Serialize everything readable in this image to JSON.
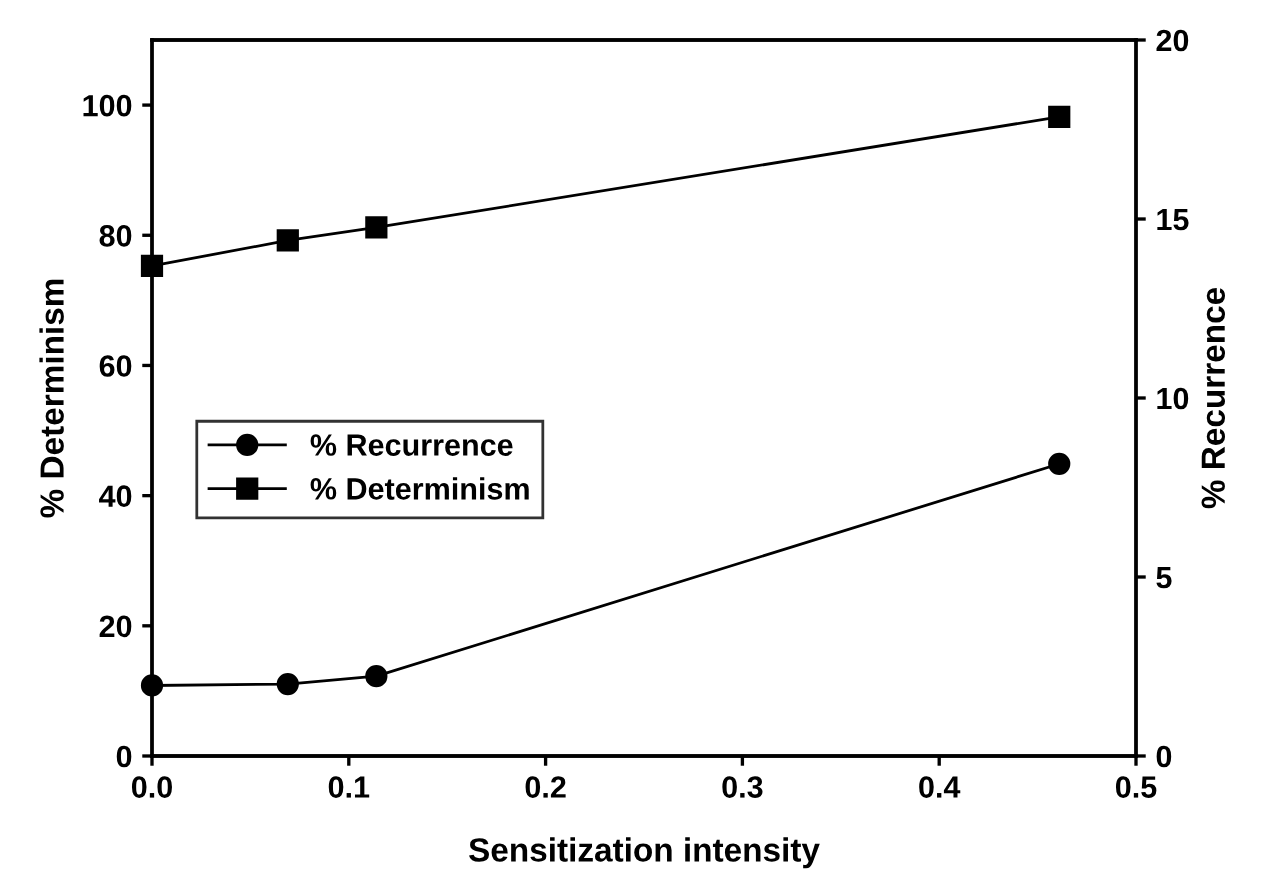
{
  "chart_data": {
    "type": "line",
    "xlabel": "Sensitization intensity",
    "ylabel": "% Determinism",
    "y2label": "% Recurrence",
    "xlim": [
      0,
      0.5
    ],
    "xticks": [
      {
        "value": 0,
        "label": "0.0"
      },
      {
        "value": 0.1,
        "label": "0.1"
      },
      {
        "value": 0.2,
        "label": "0.2"
      },
      {
        "value": 0.3,
        "label": "0.3"
      },
      {
        "value": 0.4,
        "label": "0.4"
      },
      {
        "value": 0.5,
        "label": "0.5"
      }
    ],
    "ylim": [
      0,
      110
    ],
    "yticks": [
      0,
      20,
      40,
      60,
      80,
      100
    ],
    "y2lim": [
      0,
      20
    ],
    "y2ticks": [
      0,
      5,
      10,
      15,
      20
    ],
    "x": [
      0,
      0.069,
      0.114,
      0.461
    ],
    "series": [
      {
        "name": "% Recurrence",
        "color": "#000000",
        "marker": "circle",
        "axis": "y2",
        "values": [
          1.97,
          2.01,
          2.23,
          8.16
        ]
      },
      {
        "name": "% Determinism",
        "color": "#000000",
        "marker": "square",
        "values": [
          75.3,
          79.2,
          81.2,
          98.2
        ]
      }
    ],
    "legend": "center left",
    "grid": false
  }
}
